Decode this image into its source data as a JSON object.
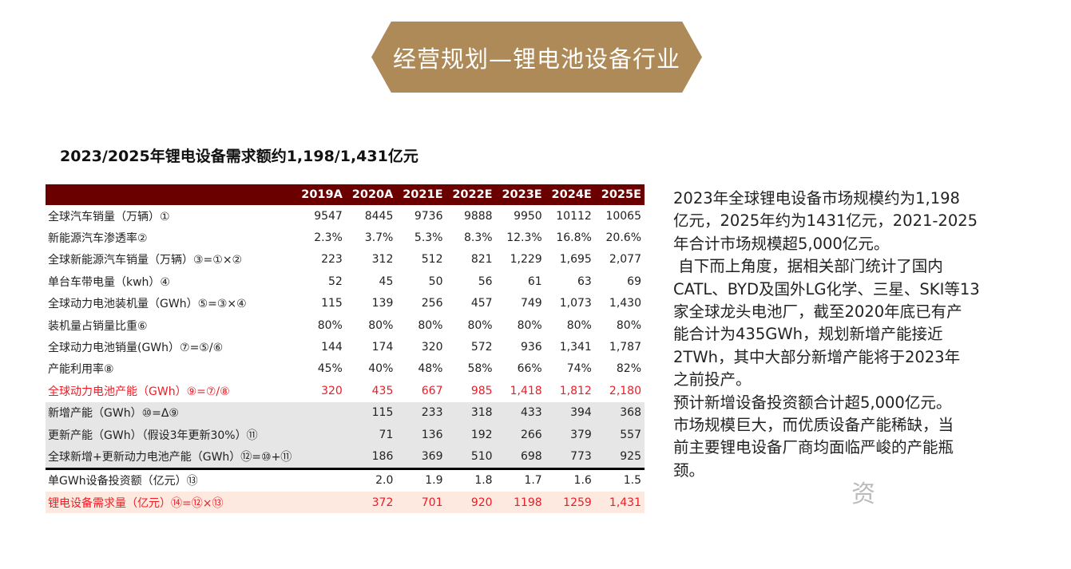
{
  "banner": {
    "title": "经营规划—锂电池设备行业"
  },
  "subtitle": "2023/2025年锂电设备需求额约1,198/1,431亿元",
  "table": {
    "headers": [
      "",
      "2019A",
      "2020A",
      "2021E",
      "2022E",
      "2023E",
      "2024E",
      "2025E"
    ],
    "rows": [
      {
        "label": "全球汽车销量（万辆）①",
        "values": [
          "9547",
          "8445",
          "9736",
          "9888",
          "9950",
          "10112",
          "10065"
        ]
      },
      {
        "label": "新能源汽车渗透率②",
        "values": [
          "2.3%",
          "3.7%",
          "5.3%",
          "8.3%",
          "12.3%",
          "16.8%",
          "20.6%"
        ]
      },
      {
        "label": "全球新能源汽车销量（万辆）③=①×②",
        "values": [
          "223",
          "312",
          "512",
          "821",
          "1,229",
          "1,695",
          "2,077"
        ]
      },
      {
        "label": "单台车带电量（kwh）④",
        "values": [
          "52",
          "45",
          "50",
          "56",
          "61",
          "63",
          "69"
        ]
      },
      {
        "label": "全球动力电池装机量（GWh）⑤=③×④",
        "values": [
          "115",
          "139",
          "256",
          "457",
          "749",
          "1,073",
          "1,430"
        ]
      },
      {
        "label": "装机量占销量比重⑥",
        "values": [
          "80%",
          "80%",
          "80%",
          "80%",
          "80%",
          "80%",
          "80%"
        ]
      },
      {
        "label": "全球动力电池销量(GWh）⑦=⑤/⑥",
        "values": [
          "144",
          "174",
          "320",
          "572",
          "936",
          "1,341",
          "1,787"
        ]
      },
      {
        "label": "产能利用率⑧",
        "values": [
          "45%",
          "40%",
          "48%",
          "58%",
          "66%",
          "74%",
          "82%"
        ]
      },
      {
        "label": "全球动力电池产能（GWh）⑨=⑦/⑧",
        "values": [
          "320",
          "435",
          "667",
          "985",
          "1,418",
          "1,812",
          "2,180"
        ]
      },
      {
        "label": "新增产能（GWh）⑩=Δ⑨",
        "values": [
          "",
          "115",
          "233",
          "318",
          "433",
          "394",
          "368"
        ]
      },
      {
        "label": "更新产能（GWh）（假设3年更新30%）⑪",
        "values": [
          "",
          "71",
          "136",
          "192",
          "266",
          "379",
          "557"
        ]
      },
      {
        "label": "全球新增+更新动力电池产能（GWh）⑫=⑩+⑪",
        "values": [
          "",
          "186",
          "369",
          "510",
          "698",
          "773",
          "925"
        ]
      },
      {
        "label": "单GWh设备投资额（亿元）⑬",
        "values": [
          "",
          "2.0",
          "1.9",
          "1.8",
          "1.7",
          "1.6",
          "1.5"
        ]
      },
      {
        "label": "锂电设备需求量（亿元）⑭=⑫×⑬",
        "values": [
          "",
          "372",
          "701",
          "920",
          "1198",
          "1259",
          "1,431"
        ]
      }
    ]
  },
  "paragraph": [
    "2023年全球锂电设备市场规模约为1,198",
    "亿元，2025年约为1431亿元，2021-2025",
    "年合计市场规模超5,000亿元。",
    " 自下而上角度，据相关部门统计了国内",
    "CATL、BYD及国外LG化学、三星、SKI等13",
    "家全球龙头电池厂，截至2020年底已有产",
    "能合计为435GWh，规划新增产能接近",
    "2TWh，其中大部分新增产能将于2023年",
    "之前投产。",
    "预计新增设备投资额合计超5,000亿元。",
    "市场规模巨大，而优质设备产能稀缺，当",
    "前主要锂电设备厂商均面临严峻的产能瓶",
    "颈。"
  ],
  "watermark": "资",
  "colors": {
    "banner": "#ad8a58",
    "header": "#6b0000",
    "highlight_red": "#ee1c25",
    "gray_band": "#e6e6e6",
    "pink_band": "#fde9df"
  }
}
